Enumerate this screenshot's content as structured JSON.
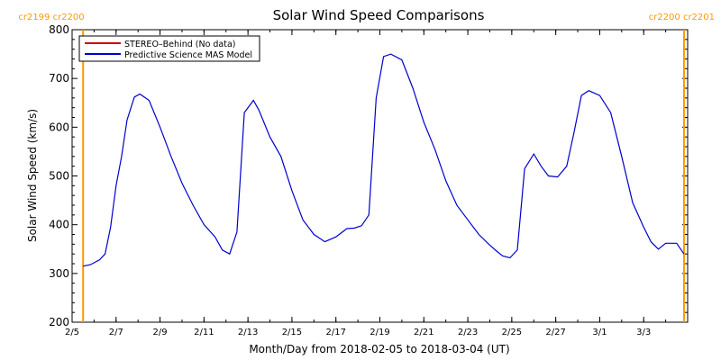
{
  "chart_data": {
    "type": "line",
    "title": "Solar Wind Speed Comparisons",
    "xlabel": "Month/Day from 2018-02-05 to 2018-03-04 (UT)",
    "ylabel": "Solar Wind Speed (km/s)",
    "ylim": [
      200,
      800
    ],
    "yticks": [
      200,
      300,
      400,
      500,
      600,
      700,
      800
    ],
    "xlim": [
      "2018-02-05",
      "2018-03-05"
    ],
    "xticks": [
      {
        "date": "2018-02-05",
        "label": "2/5"
      },
      {
        "date": "2018-02-07",
        "label": "2/7"
      },
      {
        "date": "2018-02-09",
        "label": "2/9"
      },
      {
        "date": "2018-02-11",
        "label": "2/11"
      },
      {
        "date": "2018-02-13",
        "label": "2/13"
      },
      {
        "date": "2018-02-15",
        "label": "2/15"
      },
      {
        "date": "2018-02-17",
        "label": "2/17"
      },
      {
        "date": "2018-02-19",
        "label": "2/19"
      },
      {
        "date": "2018-02-21",
        "label": "2/21"
      },
      {
        "date": "2018-02-23",
        "label": "2/23"
      },
      {
        "date": "2018-02-25",
        "label": "2/25"
      },
      {
        "date": "2018-02-27",
        "label": "2/27"
      },
      {
        "date": "2018-03-01",
        "label": "3/1"
      },
      {
        "date": "2018-03-03",
        "label": "3/3"
      }
    ],
    "legend_position": "top-left",
    "carrington_markers": [
      {
        "date": "2018-02-05 12:00",
        "label": "cr2199 cr2200",
        "color": "#ff9900",
        "label_side": "left"
      },
      {
        "date": "2018-03-04 20:00",
        "label": "cr2200 cr2201",
        "color": "#ff9900",
        "label_side": "right"
      }
    ],
    "series": [
      {
        "name": "STEREO–Behind (No data)",
        "color": "#cc0000",
        "x": [],
        "y": []
      },
      {
        "name": "Predictive Science MAS Model",
        "color": "#0000cc",
        "x": [
          "2018-02-05 12:00",
          "2018-02-05 20:00",
          "2018-02-06 06:00",
          "2018-02-06 12:00",
          "2018-02-06 18:00",
          "2018-02-07 00:00",
          "2018-02-07 06:00",
          "2018-02-07 12:00",
          "2018-02-07 20:00",
          "2018-02-08 02:00",
          "2018-02-08 12:00",
          "2018-02-09 00:00",
          "2018-02-09 12:00",
          "2018-02-10 00:00",
          "2018-02-10 12:00",
          "2018-02-11 00:00",
          "2018-02-11 12:00",
          "2018-02-11 20:00",
          "2018-02-12 04:00",
          "2018-02-12 12:00",
          "2018-02-12 20:00",
          "2018-02-13 06:00",
          "2018-02-13 12:00",
          "2018-02-14 00:00",
          "2018-02-14 12:00",
          "2018-02-15 00:00",
          "2018-02-15 12:00",
          "2018-02-16 00:00",
          "2018-02-16 12:00",
          "2018-02-17 00:00",
          "2018-02-17 12:00",
          "2018-02-17 20:00",
          "2018-02-18 04:00",
          "2018-02-18 12:00",
          "2018-02-18 20:00",
          "2018-02-19 04:00",
          "2018-02-19 12:00",
          "2018-02-20 00:00",
          "2018-02-20 12:00",
          "2018-02-21 00:00",
          "2018-02-21 12:00",
          "2018-02-22 00:00",
          "2018-02-22 12:00",
          "2018-02-23 00:00",
          "2018-02-23 12:00",
          "2018-02-24 00:00",
          "2018-02-24 08:00",
          "2018-02-24 14:00",
          "2018-02-24 22:00",
          "2018-02-25 06:00",
          "2018-02-25 14:00",
          "2018-02-26 00:00",
          "2018-02-26 08:00",
          "2018-02-26 16:00",
          "2018-02-27 02:00",
          "2018-02-27 12:00",
          "2018-02-27 20:00",
          "2018-02-28 04:00",
          "2018-02-28 12:00",
          "2018-03-01 00:00",
          "2018-03-01 12:00",
          "2018-03-02 00:00",
          "2018-03-02 12:00",
          "2018-03-03 00:00",
          "2018-03-03 08:00",
          "2018-03-03 16:00",
          "2018-03-04 00:00",
          "2018-03-04 12:00",
          "2018-03-04 20:00"
        ],
        "y": [
          315,
          318,
          328,
          340,
          395,
          480,
          540,
          615,
          662,
          668,
          655,
          600,
          540,
          485,
          440,
          400,
          375,
          348,
          340,
          385,
          630,
          655,
          635,
          580,
          540,
          470,
          410,
          380,
          365,
          375,
          392,
          393,
          398,
          420,
          660,
          745,
          750,
          738,
          680,
          610,
          555,
          490,
          440,
          410,
          380,
          358,
          345,
          336,
          332,
          348,
          515,
          545,
          520,
          500,
          498,
          520,
          590,
          665,
          675,
          665,
          630,
          540,
          445,
          395,
          365,
          350,
          362,
          362,
          340
        ]
      }
    ]
  }
}
